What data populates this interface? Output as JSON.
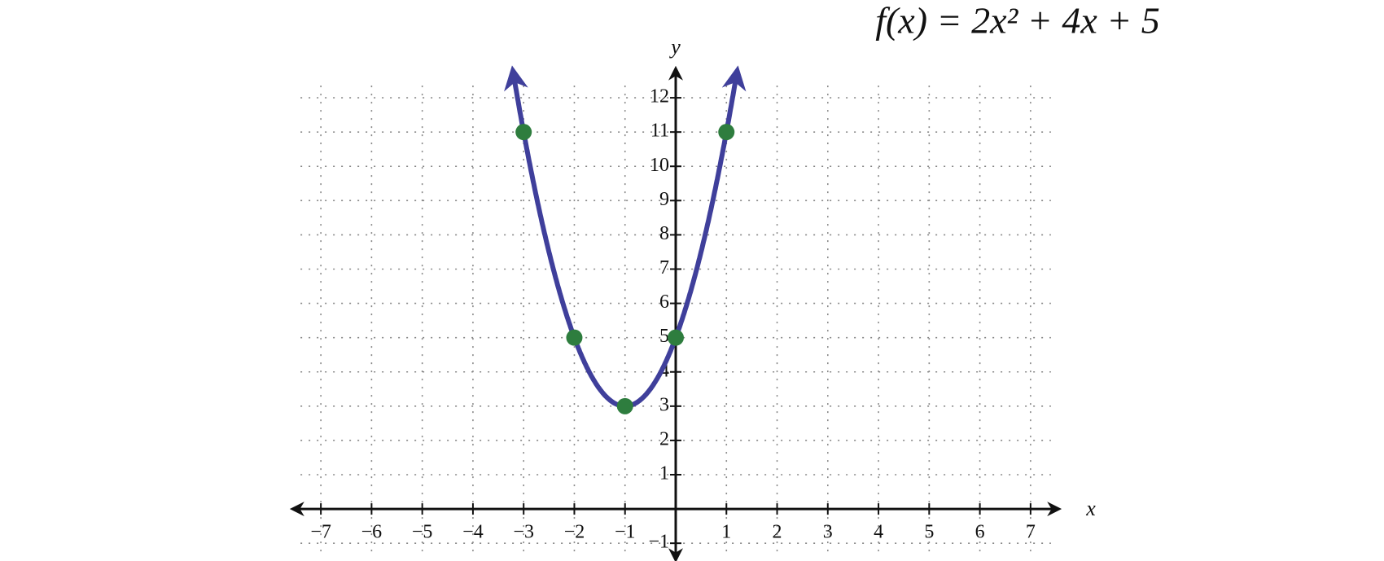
{
  "chart_data": {
    "type": "scatter",
    "title": "f(x) = 2x² + 4x + 5",
    "x_label": "x",
    "y_label": "y",
    "x": [
      -3,
      -2,
      -1,
      0,
      1
    ],
    "values": [
      11,
      5,
      3,
      5,
      11
    ],
    "color": "#2e7d3e",
    "curve_color": "#3f3f9b",
    "xlim": [
      -7.5,
      7.5
    ],
    "ylim": [
      -1.4,
      13
    ],
    "xticks": [
      {
        "value": -7,
        "label": "−7"
      },
      {
        "value": -6,
        "label": "−6"
      },
      {
        "value": -5,
        "label": "−5"
      },
      {
        "value": -4,
        "label": "−4"
      },
      {
        "value": -3,
        "label": "−3"
      },
      {
        "value": -2,
        "label": "−2"
      },
      {
        "value": -1,
        "label": "−1"
      },
      1,
      2,
      3,
      4,
      5,
      6,
      7
    ],
    "yticks": [
      {
        "value": -1,
        "label": "−1"
      },
      1,
      2,
      3,
      4,
      5,
      6,
      7,
      8,
      9,
      10,
      11,
      12
    ],
    "grid": true
  }
}
